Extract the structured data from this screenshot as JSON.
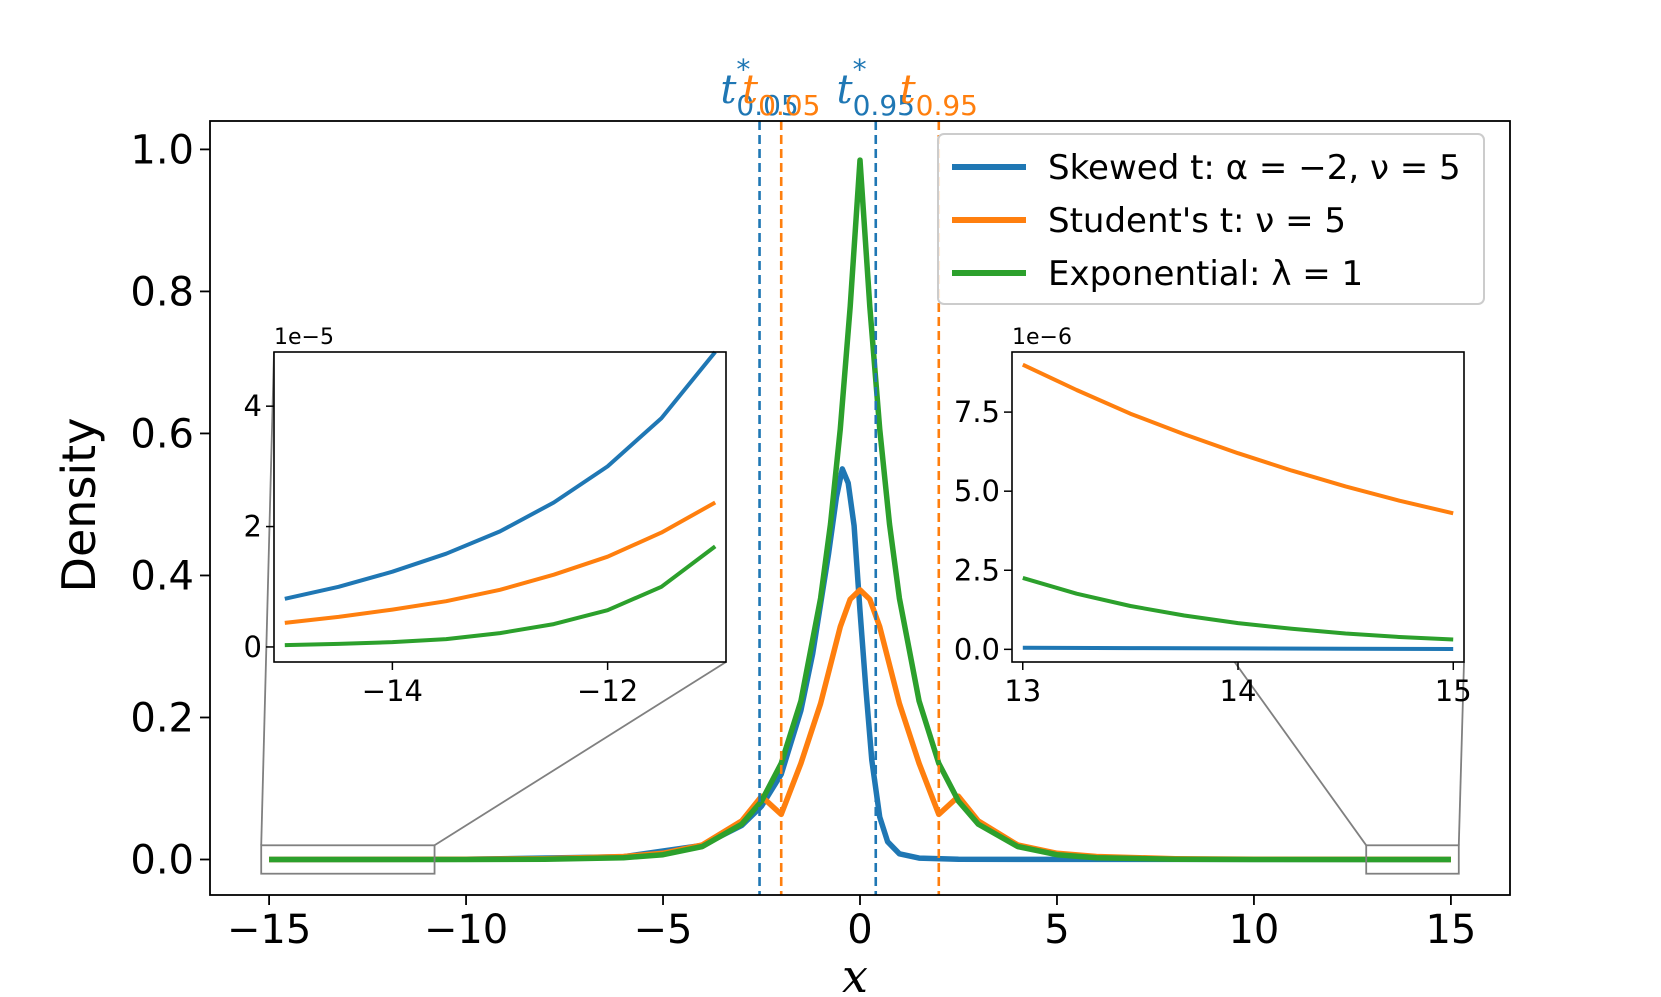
{
  "chart_data": {
    "type": "line",
    "title": "",
    "xlabel": "x",
    "ylabel": "Density",
    "xlim": [
      -16.5,
      16.5
    ],
    "ylim": [
      -0.05,
      1.04
    ],
    "xticks": [
      -15,
      -10,
      -5,
      0,
      5,
      10,
      15
    ],
    "xtick_labels": [
      "−15",
      "−10",
      "−5",
      "0",
      "5",
      "10",
      "15"
    ],
    "yticks": [
      0.0,
      0.2,
      0.4,
      0.6,
      0.8,
      1.0
    ],
    "ytick_labels": [
      "0.0",
      "0.2",
      "0.4",
      "0.6",
      "0.8",
      "1.0"
    ],
    "series": [
      {
        "name": "Skewed t",
        "legend_label": "Skewed t: α = −2, ν = 5",
        "color": "#1f77b4",
        "x": [
          -15,
          -10,
          -6,
          -4,
          -3,
          -2.5,
          -2,
          -1.5,
          -1.2,
          -1.0,
          -0.8,
          -0.6,
          -0.45,
          -0.3,
          -0.15,
          0,
          0.15,
          0.3,
          0.5,
          0.7,
          1.0,
          1.5,
          2.5,
          15
        ],
        "y": [
          0,
          0.0003,
          0.004,
          0.02,
          0.048,
          0.075,
          0.12,
          0.21,
          0.29,
          0.36,
          0.43,
          0.51,
          0.55,
          0.53,
          0.47,
          0.35,
          0.24,
          0.14,
          0.06,
          0.025,
          0.008,
          0.002,
          0.0003,
          0
        ]
      },
      {
        "name": "Student's t",
        "legend_label": "Student's t: ν = 5",
        "color": "#ff7f0e",
        "x": [
          -15,
          -10,
          -8,
          -6,
          -5,
          -4,
          -3,
          -2.5,
          -2,
          -1.5,
          -1.0,
          -0.5,
          -0.25,
          0,
          0.25,
          0.5,
          1.0,
          1.5,
          2,
          2.5,
          3,
          4,
          5,
          6,
          8,
          10,
          15
        ],
        "y": [
          0,
          0.0004,
          0.0011,
          0.0042,
          0.0087,
          0.0206,
          0.0544,
          0.089,
          0.0635,
          0.1353,
          0.2197,
          0.3279,
          0.3664,
          0.3796,
          0.3664,
          0.3279,
          0.2197,
          0.1353,
          0.0635,
          0.089,
          0.0544,
          0.0206,
          0.0087,
          0.0042,
          0.0011,
          0.0004,
          0
        ]
      },
      {
        "name": "Exponential",
        "legend_label": "Exponential: λ = 1",
        "color": "#2ca02c",
        "x": [
          -15,
          -10,
          -8,
          -6,
          -5,
          -4,
          -3,
          -2.5,
          -2,
          -1.5,
          -1.0,
          -0.75,
          -0.5,
          -0.25,
          0,
          0.25,
          0.5,
          0.75,
          1.0,
          1.5,
          2,
          2.5,
          3,
          4,
          5,
          6,
          8,
          10,
          15
        ],
        "y": [
          0,
          5e-05,
          0.0003,
          0.0025,
          0.0067,
          0.0183,
          0.0498,
          0.0821,
          0.1353,
          0.2231,
          0.3679,
          0.4724,
          0.6065,
          0.7788,
          0.985,
          0.7788,
          0.6065,
          0.4724,
          0.3679,
          0.2231,
          0.1353,
          0.0821,
          0.0498,
          0.0183,
          0.0067,
          0.0025,
          0.0003,
          5e-05,
          0
        ]
      }
    ],
    "vlines": [
      {
        "x": -2.55,
        "color": "#1f77b4",
        "label_main": "t",
        "label_sup": "*",
        "label_sub": "0.05"
      },
      {
        "x": -2.0,
        "color": "#ff7f0e",
        "label_main": "t",
        "label_sup": "",
        "label_sub": "0.05"
      },
      {
        "x": 0.4,
        "color": "#1f77b4",
        "label_main": "t",
        "label_sup": "*",
        "label_sub": "0.95"
      },
      {
        "x": 2.0,
        "color": "#ff7f0e",
        "label_main": "t",
        "label_sup": "",
        "label_sub": "0.95"
      }
    ],
    "legend": {
      "position": "top-right"
    },
    "zoom_boxes": [
      {
        "xlim": [
          -15.2,
          -10.8
        ],
        "ylim": [
          -0.02,
          0.02
        ]
      },
      {
        "xlim": [
          12.85,
          15.2
        ],
        "ylim": [
          -0.02,
          0.02
        ]
      }
    ],
    "insets": [
      {
        "name": "left-tail",
        "xlim": [
          -15.1,
          -10.9
        ],
        "ylim": [
          -0.25,
          4.9
        ],
        "xticks": [
          -14,
          -12
        ],
        "xtick_labels": [
          "−14",
          "−12"
        ],
        "yticks": [
          0,
          2,
          4
        ],
        "ytick_labels": [
          "0",
          "2",
          "4"
        ],
        "scale_label": "1e−5",
        "series": [
          {
            "name": "Skewed t",
            "color": "#1f77b4",
            "x": [
              -15,
              -14.5,
              -14,
              -13.5,
              -13,
              -12.5,
              -12,
              -11.5,
              -11
            ],
            "y": [
              0.8,
              1.0,
              1.25,
              1.55,
              1.92,
              2.4,
              3.0,
              3.8,
              4.9
            ]
          },
          {
            "name": "Student's t",
            "color": "#ff7f0e",
            "x": [
              -15,
              -14.5,
              -14,
              -13.5,
              -13,
              -12.5,
              -12,
              -11.5,
              -11
            ],
            "y": [
              0.4,
              0.5,
              0.62,
              0.76,
              0.95,
              1.2,
              1.5,
              1.9,
              2.4
            ]
          },
          {
            "name": "Exponential",
            "color": "#2ca02c",
            "x": [
              -15,
              -14.5,
              -14,
              -13.5,
              -13,
              -12.5,
              -12,
              -11.5,
              -11
            ],
            "y": [
              0.03,
              0.05,
              0.08,
              0.13,
              0.23,
              0.38,
              0.61,
              1.0,
              1.67
            ]
          }
        ]
      },
      {
        "name": "right-tail",
        "xlim": [
          12.95,
          15.05
        ],
        "ylim": [
          -0.4,
          9.4
        ],
        "xticks": [
          13,
          14,
          15
        ],
        "xtick_labels": [
          "13",
          "14",
          "15"
        ],
        "yticks": [
          0,
          2.5,
          5.0,
          7.5
        ],
        "ytick_labels": [
          "0.0",
          "2.5",
          "5.0",
          "7.5"
        ],
        "scale_label": "1e−6",
        "series": [
          {
            "name": "Skewed t",
            "color": "#1f77b4",
            "x": [
              13,
              13.5,
              14,
              14.5,
              15
            ],
            "y": [
              0.05,
              0.04,
              0.03,
              0.02,
              0.01
            ]
          },
          {
            "name": "Student's t",
            "color": "#ff7f0e",
            "x": [
              13,
              13.25,
              13.5,
              13.75,
              14,
              14.25,
              14.5,
              14.75,
              15
            ],
            "y": [
              9.0,
              8.2,
              7.45,
              6.8,
              6.2,
              5.65,
              5.15,
              4.7,
              4.3
            ]
          },
          {
            "name": "Exponential",
            "color": "#2ca02c",
            "x": [
              13,
              13.25,
              13.5,
              13.75,
              14,
              14.25,
              14.5,
              14.75,
              15
            ],
            "y": [
              2.26,
              1.76,
              1.37,
              1.07,
              0.83,
              0.65,
              0.5,
              0.39,
              0.31
            ]
          }
        ]
      }
    ]
  }
}
